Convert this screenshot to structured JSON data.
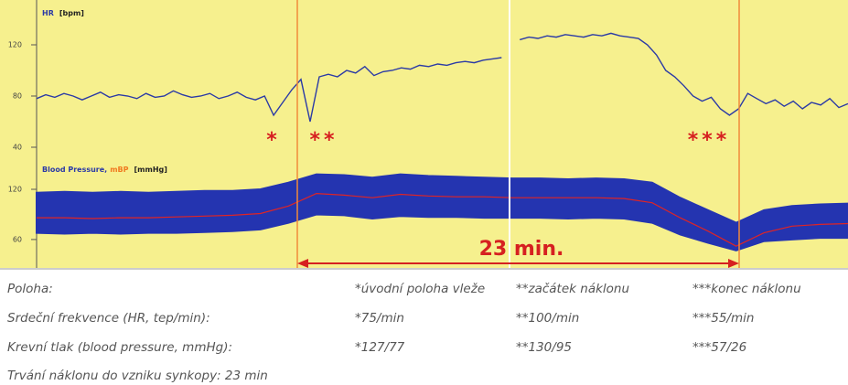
{
  "chart_data": [
    {
      "type": "line",
      "title": "HR",
      "unit": "[bpm]",
      "ylim": [
        30,
        155
      ],
      "yticks": [
        40,
        80,
        120
      ],
      "series": [
        {
          "color": "#2b3aa6",
          "values": [
            78,
            81,
            79,
            82,
            80,
            77,
            80,
            83,
            79,
            81,
            80,
            78,
            82,
            79,
            80,
            84,
            81,
            79,
            80,
            82,
            78,
            80,
            83,
            79,
            77,
            80,
            65,
            75,
            85,
            93,
            60,
            95,
            97,
            95,
            100,
            98,
            103,
            96,
            99,
            100,
            102,
            101,
            104,
            103,
            105,
            104,
            106,
            107,
            106,
            108,
            109,
            110,
            null,
            124,
            126,
            125,
            127,
            126,
            128,
            127,
            126,
            128,
            127,
            129,
            127,
            126,
            125,
            120,
            112,
            100,
            95,
            88,
            80,
            76,
            79,
            70,
            65,
            70,
            82,
            78,
            74,
            77,
            72,
            76,
            70,
            75,
            73,
            78,
            71,
            74
          ]
        }
      ]
    },
    {
      "type": "band",
      "title": "Blood Pressure,",
      "mbp_label": "mBP",
      "unit": "[mmHg]",
      "ylim": [
        26,
        155
      ],
      "yticks": [
        60,
        120
      ],
      "series": [
        {
          "color": "#2434b0",
          "values": [
            116,
            117,
            116,
            117,
            116,
            117,
            118,
            118,
            120,
            128,
            138,
            137,
            134,
            138,
            136,
            135,
            134,
            133,
            133,
            132,
            133,
            132,
            128,
            110,
            95,
            80,
            95,
            100,
            102,
            103
          ]
        },
        {
          "color": "#2434b0",
          "values": [
            68,
            67,
            68,
            67,
            68,
            68,
            69,
            70,
            72,
            80,
            90,
            89,
            85,
            88,
            87,
            87,
            86,
            86,
            86,
            85,
            86,
            85,
            80,
            66,
            56,
            47,
            58,
            60,
            62,
            62
          ]
        },
        {
          "color": "#e02424",
          "values": [
            86,
            86,
            85,
            86,
            86,
            87,
            88,
            89,
            91,
            100,
            115,
            113,
            110,
            114,
            112,
            111,
            111,
            110,
            110,
            110,
            110,
            109,
            104,
            86,
            70,
            52,
            68,
            76,
            78,
            79
          ]
        }
      ]
    }
  ],
  "annotations": {
    "markers": [
      "*",
      "**",
      "***"
    ],
    "duration": "23 min."
  },
  "table": {
    "rows": [
      [
        "Poloha:",
        "*úvodní poloha vleže",
        "**začátek náklonu",
        "***konec náklonu"
      ],
      [
        "Srdeční frekvence (HR, tep/min):",
        "*75/min",
        "**100/min",
        "***55/min"
      ],
      [
        "Krevní tlak (blood pressure, mmHg):",
        "*127/77",
        "**130/95",
        "***57/26"
      ],
      [
        "Trvání náklonu do vzniku synkopy: 23 min"
      ]
    ]
  }
}
